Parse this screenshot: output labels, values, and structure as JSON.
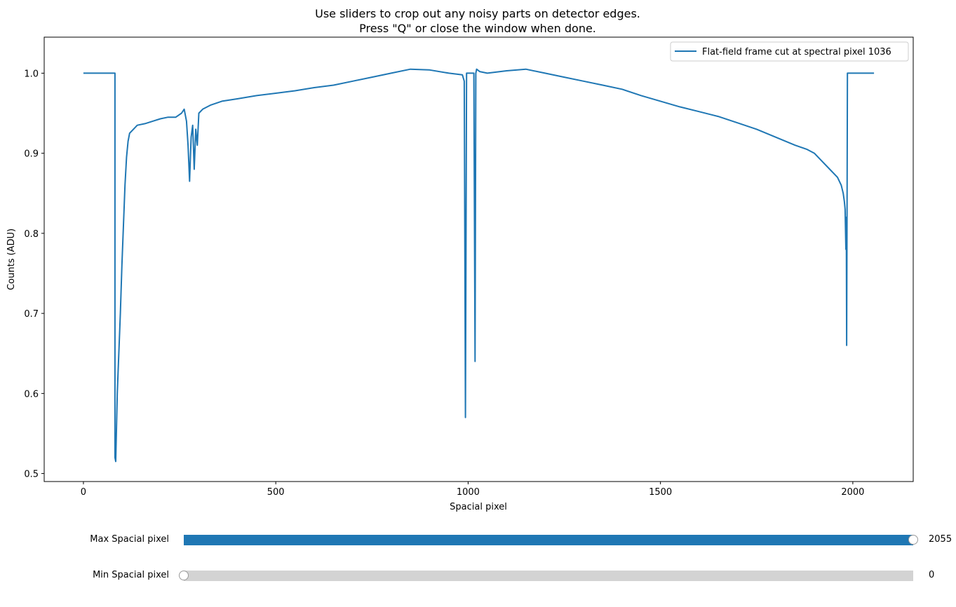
{
  "window": {
    "title_line1": "Use sliders to crop out any noisy parts on detector edges.",
    "title_line2": "Press \"Q\" or close the window when done."
  },
  "chart_data": {
    "type": "line",
    "xlabel": "Spacial pixel",
    "ylabel": "Counts (ADU)",
    "xlim": [
      -102,
      2157
    ],
    "ylim": [
      0.49,
      1.045
    ],
    "xticks": [
      0,
      500,
      1000,
      1500,
      2000
    ],
    "yticks": [
      0.5,
      0.6,
      0.7,
      0.8,
      0.9,
      1.0
    ],
    "xtick_labels": [
      "0",
      "500",
      "1000",
      "1500",
      "2000"
    ],
    "ytick_labels": [
      "0.5",
      "0.6",
      "0.7",
      "0.8",
      "0.9",
      "1.0"
    ],
    "legend_position": "upper right",
    "grid": false,
    "color": "#1f77b4",
    "series": [
      {
        "name": "Flat-field frame cut at spectral pixel 1036",
        "x": [
          0,
          82,
          82,
          84,
          88,
          92,
          96,
          100,
          104,
          108,
          112,
          116,
          120,
          130,
          140,
          160,
          180,
          200,
          220,
          240,
          255,
          262,
          268,
          272,
          276,
          280,
          284,
          288,
          292,
          296,
          300,
          310,
          330,
          360,
          400,
          450,
          500,
          550,
          600,
          650,
          700,
          750,
          800,
          850,
          900,
          950,
          985,
          990,
          993,
          996,
          998,
          1000,
          1005,
          1010,
          1015,
          1018,
          1020,
          1022,
          1030,
          1050,
          1100,
          1150,
          1200,
          1250,
          1300,
          1350,
          1400,
          1450,
          1500,
          1550,
          1600,
          1650,
          1700,
          1750,
          1800,
          1850,
          1880,
          1900,
          1920,
          1940,
          1950,
          1960,
          1970,
          1975,
          1978,
          1980,
          1982,
          1983,
          1984,
          1985,
          1986,
          1990,
          2055
        ],
        "y": [
          1.0,
          1.0,
          0.52,
          0.515,
          0.6,
          0.65,
          0.7,
          0.76,
          0.81,
          0.86,
          0.895,
          0.915,
          0.925,
          0.93,
          0.935,
          0.937,
          0.94,
          0.943,
          0.945,
          0.945,
          0.95,
          0.955,
          0.94,
          0.91,
          0.865,
          0.92,
          0.935,
          0.88,
          0.93,
          0.91,
          0.95,
          0.955,
          0.96,
          0.965,
          0.968,
          0.972,
          0.975,
          0.978,
          0.982,
          0.985,
          0.99,
          0.995,
          1.0,
          1.005,
          1.004,
          1.0,
          0.998,
          0.99,
          0.57,
          1.0,
          1.0,
          1.0,
          1.0,
          1.0,
          1.0,
          0.64,
          1.0,
          1.005,
          1.002,
          1.0,
          1.003,
          1.005,
          1.0,
          0.995,
          0.99,
          0.985,
          0.98,
          0.972,
          0.965,
          0.958,
          0.952,
          0.946,
          0.938,
          0.93,
          0.92,
          0.91,
          0.905,
          0.9,
          0.89,
          0.88,
          0.875,
          0.87,
          0.86,
          0.85,
          0.84,
          0.83,
          0.78,
          0.82,
          0.66,
          0.84,
          1.0,
          1.0,
          1.0
        ]
      }
    ]
  },
  "sliders": [
    {
      "label": "Max Spacial pixel",
      "value": "2055",
      "fraction": 1.0
    },
    {
      "label": "Min Spacial pixel",
      "value": "0",
      "fraction": 0.0
    }
  ]
}
